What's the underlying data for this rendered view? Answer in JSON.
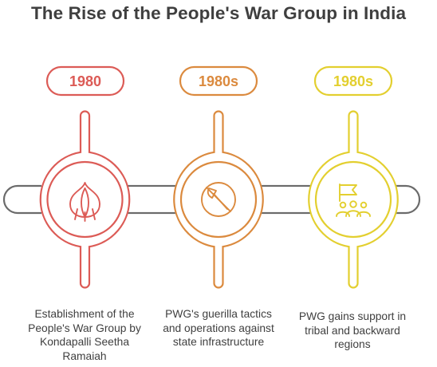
{
  "title": "The Rise of the People's War Group in India",
  "colors": {
    "step1": "#dc5b56",
    "step2": "#db8a3e",
    "step3": "#e3cf2f",
    "connector": "#6b6b6b",
    "text": "#3f3f3f"
  },
  "steps": [
    {
      "date": "1980",
      "icon": "garlic-icon",
      "description": "Establishment of the People's War Group by Kondapalli Seetha Ramaiah"
    },
    {
      "date": "1980s",
      "icon": "axe-prohibited-icon",
      "description": "PWG's guerilla tactics and operations against state infrastructure"
    },
    {
      "date": "1980s",
      "icon": "flag-people-icon",
      "description": "PWG gains support in tribal and backward regions"
    }
  ]
}
